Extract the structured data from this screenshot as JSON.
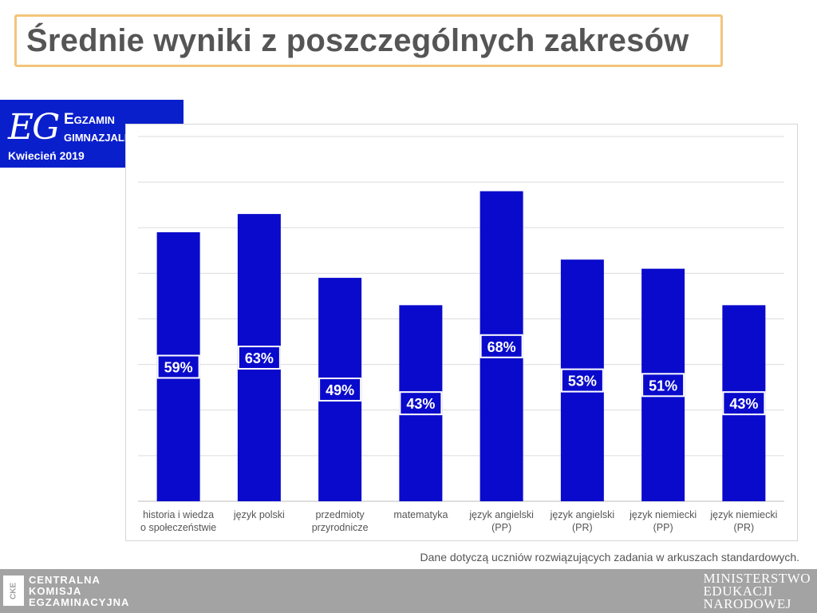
{
  "page_title": "Średnie wyniki z poszczególnych zakresów",
  "brand": {
    "logo_text": "EG",
    "title_line1": "Egzamin",
    "title_line2": "gimnazjalny",
    "date": "Kwiecień 2019",
    "bg_color": "#0a1fcc"
  },
  "chart_data": {
    "type": "bar",
    "title": "",
    "xlabel": "",
    "ylabel": "",
    "ylim": [
      0,
      80
    ],
    "grid": true,
    "bar_color": "#0a0acc",
    "categories": [
      [
        "historia i wiedza",
        "o społeczeństwie"
      ],
      [
        "język polski"
      ],
      [
        "przedmioty",
        "przyrodnicze"
      ],
      [
        "matematyka"
      ],
      [
        "język angielski",
        "(PP)"
      ],
      [
        "język angielski",
        "(PR)"
      ],
      [
        "język niemiecki",
        "(PP)"
      ],
      [
        "język niemiecki",
        "(PR)"
      ]
    ],
    "values": [
      59,
      63,
      49,
      43,
      68,
      53,
      51,
      43
    ],
    "data_labels": [
      "59%",
      "63%",
      "49%",
      "43%",
      "68%",
      "53%",
      "51%",
      "43%"
    ]
  },
  "footnote": "Dane dotyczą uczniów rozwiązujących zadania w arkuszach standardowych.",
  "footer": {
    "cke_logo": "CKE",
    "cke_lines": [
      "CENTRALNA",
      "KOMISJA",
      "EGZAMINACYJNA"
    ],
    "men_lines": [
      "MINISTERSTWO",
      "EDUKACJI",
      "NARODOWEJ"
    ],
    "bg_color": "#a3a3a3"
  }
}
